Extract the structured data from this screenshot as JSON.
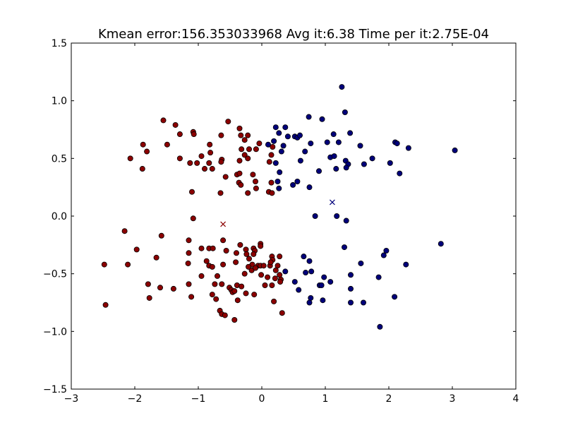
{
  "chart_data": {
    "type": "scatter",
    "title": "Kmean error:156.353033968 Avg it:6.38 Time per it:2.75E-04",
    "xlabel": "",
    "ylabel": "",
    "xlim": [
      -3,
      4
    ],
    "ylim": [
      -1.5,
      1.5
    ],
    "xticks": [
      -3,
      -2,
      -1,
      0,
      1,
      2,
      3,
      4
    ],
    "xtick_labels": [
      "−3",
      "−2",
      "−1",
      "0",
      "1",
      "2",
      "3",
      "4"
    ],
    "yticks": [
      -1.5,
      -1.0,
      -0.5,
      0.0,
      0.5,
      1.0,
      1.5
    ],
    "ytick_labels": [
      "−1.5",
      "−1.0",
      "−0.5",
      "0.0",
      "0.5",
      "1.0",
      "1.5"
    ],
    "grid": false,
    "legend": "none",
    "colors": {
      "cluster_0": "#8b0000",
      "cluster_1": "#00007a",
      "edge": "#000000"
    },
    "series": [
      {
        "marker": "circle",
        "color_key": "cluster_0",
        "points": [
          [
            -1.55,
            0.83
          ],
          [
            -1.36,
            0.79
          ],
          [
            -0.53,
            0.82
          ],
          [
            -1.08,
            0.73
          ],
          [
            -1.07,
            0.71
          ],
          [
            -1.29,
            0.71
          ],
          [
            -0.35,
            0.76
          ],
          [
            -0.33,
            0.7
          ],
          [
            -0.22,
            0.7
          ],
          [
            -0.64,
            0.7
          ],
          [
            -1.87,
            0.62
          ],
          [
            -1.49,
            0.62
          ],
          [
            -0.82,
            0.62
          ],
          [
            -0.27,
            0.66
          ],
          [
            -0.04,
            0.63
          ],
          [
            -1.81,
            0.56
          ],
          [
            -0.81,
            0.55
          ],
          [
            -0.32,
            0.58
          ],
          [
            -0.2,
            0.58
          ],
          [
            -0.09,
            0.58
          ],
          [
            0.17,
            0.6
          ],
          [
            -2.07,
            0.5
          ],
          [
            -1.29,
            0.5
          ],
          [
            -0.95,
            0.52
          ],
          [
            -0.27,
            0.53
          ],
          [
            -0.63,
            0.49
          ],
          [
            -1.13,
            0.46
          ],
          [
            -1.02,
            0.46
          ],
          [
            -0.83,
            0.46
          ],
          [
            -0.64,
            0.47
          ],
          [
            -0.35,
            0.48
          ],
          [
            -0.22,
            0.5
          ],
          [
            0.12,
            0.47
          ],
          [
            0.15,
            0.53
          ],
          [
            -1.88,
            0.41
          ],
          [
            -0.9,
            0.41
          ],
          [
            -0.78,
            0.41
          ],
          [
            -0.57,
            0.34
          ],
          [
            -0.39,
            0.36
          ],
          [
            -0.35,
            0.37
          ],
          [
            -0.14,
            0.36
          ],
          [
            -0.1,
            0.3
          ],
          [
            0.15,
            0.29
          ],
          [
            -0.36,
            0.29
          ],
          [
            -0.33,
            0.27
          ],
          [
            -0.65,
            0.2
          ],
          [
            -0.22,
            0.2
          ],
          [
            -0.09,
            0.24
          ],
          [
            0.11,
            0.21
          ],
          [
            0.16,
            0.2
          ],
          [
            -1.1,
            0.21
          ],
          [
            -2.16,
            -0.13
          ],
          [
            -1.58,
            -0.17
          ],
          [
            -1.08,
            -0.02
          ],
          [
            -1.97,
            -0.29
          ],
          [
            -1.15,
            -0.21
          ],
          [
            -0.61,
            -0.21
          ],
          [
            -0.56,
            -0.3
          ],
          [
            -0.34,
            -0.25
          ],
          [
            -0.25,
            -0.29
          ],
          [
            -0.13,
            -0.28
          ],
          [
            -0.11,
            -0.3
          ],
          [
            -0.02,
            -0.24
          ],
          [
            -0.02,
            -0.26
          ],
          [
            -1.15,
            -0.32
          ],
          [
            -0.95,
            -0.28
          ],
          [
            -0.83,
            -0.28
          ],
          [
            -0.77,
            -0.28
          ],
          [
            -0.4,
            -0.32
          ],
          [
            -0.24,
            -0.33
          ],
          [
            -0.13,
            -0.33
          ],
          [
            -1.66,
            -0.36
          ],
          [
            -1.16,
            -0.41
          ],
          [
            -0.87,
            -0.39
          ],
          [
            -0.61,
            -0.42
          ],
          [
            -0.41,
            -0.4
          ],
          [
            -0.2,
            -0.37
          ],
          [
            -0.15,
            -0.42
          ],
          [
            -0.06,
            -0.43
          ],
          [
            -0.02,
            -0.43
          ],
          [
            0.13,
            -0.43
          ],
          [
            0.16,
            -0.35
          ],
          [
            0.17,
            -0.38
          ],
          [
            0.28,
            -0.35
          ],
          [
            -2.48,
            -0.42
          ],
          [
            -2.11,
            -0.42
          ],
          [
            -0.83,
            -0.43
          ],
          [
            -0.78,
            -0.44
          ],
          [
            -0.27,
            -0.5
          ],
          [
            -0.16,
            -0.47
          ],
          [
            -0.21,
            -0.44
          ],
          [
            -0.1,
            -0.45
          ],
          [
            0.03,
            -0.43
          ],
          [
            0.14,
            -0.4
          ],
          [
            0.22,
            -0.47
          ],
          [
            0.25,
            -0.43
          ],
          [
            -0.95,
            -0.52
          ],
          [
            -0.7,
            -0.52
          ],
          [
            -0.01,
            -0.51
          ],
          [
            0.09,
            -0.53
          ],
          [
            0.21,
            -0.54
          ],
          [
            0.28,
            -0.51
          ],
          [
            0.3,
            -0.55
          ],
          [
            -1.79,
            -0.59
          ],
          [
            -1.15,
            -0.59
          ],
          [
            -0.74,
            -0.59
          ],
          [
            -0.63,
            -0.59
          ],
          [
            -0.39,
            -0.6
          ],
          [
            -0.32,
            -0.61
          ],
          [
            0.05,
            -0.6
          ],
          [
            0.16,
            -0.6
          ],
          [
            0.29,
            -0.57
          ],
          [
            -1.6,
            -0.62
          ],
          [
            -1.39,
            -0.63
          ],
          [
            -0.51,
            -0.62
          ],
          [
            -0.48,
            -0.64
          ],
          [
            -0.46,
            -0.66
          ],
          [
            -0.43,
            -0.65
          ],
          [
            -1.77,
            -0.71
          ],
          [
            -1.11,
            -0.7
          ],
          [
            -0.78,
            -0.68
          ],
          [
            -0.72,
            -0.72
          ],
          [
            -0.25,
            -0.67
          ],
          [
            -0.12,
            -0.68
          ],
          [
            -0.38,
            -0.73
          ],
          [
            0.19,
            -0.74
          ],
          [
            -2.46,
            -0.77
          ],
          [
            -0.66,
            -0.82
          ],
          [
            -0.63,
            -0.85
          ],
          [
            -0.58,
            -0.86
          ],
          [
            -0.43,
            -0.9
          ],
          [
            0.32,
            -0.84
          ]
        ]
      },
      {
        "marker": "circle",
        "color_key": "cluster_1",
        "points": [
          [
            1.26,
            1.12
          ],
          [
            1.31,
            0.9
          ],
          [
            0.74,
            0.86
          ],
          [
            0.95,
            0.84
          ],
          [
            1.13,
            0.71
          ],
          [
            1.39,
            0.72
          ],
          [
            0.22,
            0.77
          ],
          [
            0.37,
            0.77
          ],
          [
            0.27,
            0.72
          ],
          [
            0.41,
            0.69
          ],
          [
            0.52,
            0.69
          ],
          [
            0.56,
            0.68
          ],
          [
            0.6,
            0.7
          ],
          [
            1.03,
            0.64
          ],
          [
            1.21,
            0.64
          ],
          [
            0.19,
            0.65
          ],
          [
            0.1,
            0.62
          ],
          [
            0.77,
            0.63
          ],
          [
            0.34,
            0.61
          ],
          [
            0.31,
            0.56
          ],
          [
            0.68,
            0.56
          ],
          [
            1.08,
            0.51
          ],
          [
            1.14,
            0.52
          ],
          [
            1.32,
            0.48
          ],
          [
            1.36,
            0.45
          ],
          [
            1.55,
            0.61
          ],
          [
            1.74,
            0.5
          ],
          [
            2.1,
            0.64
          ],
          [
            2.13,
            0.63
          ],
          [
            2.31,
            0.59
          ],
          [
            3.04,
            0.57
          ],
          [
            0.22,
            0.46
          ],
          [
            0.61,
            0.48
          ],
          [
            0.9,
            0.39
          ],
          [
            1.17,
            0.41
          ],
          [
            1.33,
            0.42
          ],
          [
            1.61,
            0.45
          ],
          [
            2.02,
            0.46
          ],
          [
            2.17,
            0.37
          ],
          [
            0.28,
            0.38
          ],
          [
            0.25,
            0.3
          ],
          [
            0.27,
            0.24
          ],
          [
            0.49,
            0.27
          ],
          [
            0.56,
            0.3
          ],
          [
            0.75,
            0.25
          ],
          [
            0.84,
            0.0
          ],
          [
            1.18,
            0.0
          ],
          [
            1.33,
            -0.04
          ],
          [
            1.3,
            -0.27
          ],
          [
            2.82,
            -0.24
          ],
          [
            0.66,
            -0.35
          ],
          [
            1.92,
            -0.34
          ],
          [
            1.96,
            -0.3
          ],
          [
            0.75,
            -0.39
          ],
          [
            1.56,
            -0.41
          ],
          [
            2.27,
            -0.42
          ],
          [
            0.37,
            -0.48
          ],
          [
            0.78,
            -0.48
          ],
          [
            0.69,
            -0.49
          ],
          [
            1.4,
            -0.51
          ],
          [
            1.84,
            -0.53
          ],
          [
            0.98,
            -0.53
          ],
          [
            0.52,
            -0.57
          ],
          [
            1.08,
            -0.57
          ],
          [
            0.91,
            -0.6
          ],
          [
            0.94,
            -0.6
          ],
          [
            1.4,
            -0.63
          ],
          [
            0.58,
            -0.64
          ],
          [
            2.09,
            -0.7
          ],
          [
            0.77,
            -0.71
          ],
          [
            0.96,
            -0.73
          ],
          [
            0.75,
            -0.75
          ],
          [
            1.4,
            -0.75
          ],
          [
            1.6,
            -0.75
          ],
          [
            1.86,
            -0.96
          ]
        ]
      },
      {
        "marker": "x",
        "color_key": "cluster_0",
        "points": [
          [
            -0.61,
            -0.07
          ]
        ]
      },
      {
        "marker": "x",
        "color_key": "cluster_1",
        "points": [
          [
            1.11,
            0.12
          ]
        ]
      }
    ]
  }
}
